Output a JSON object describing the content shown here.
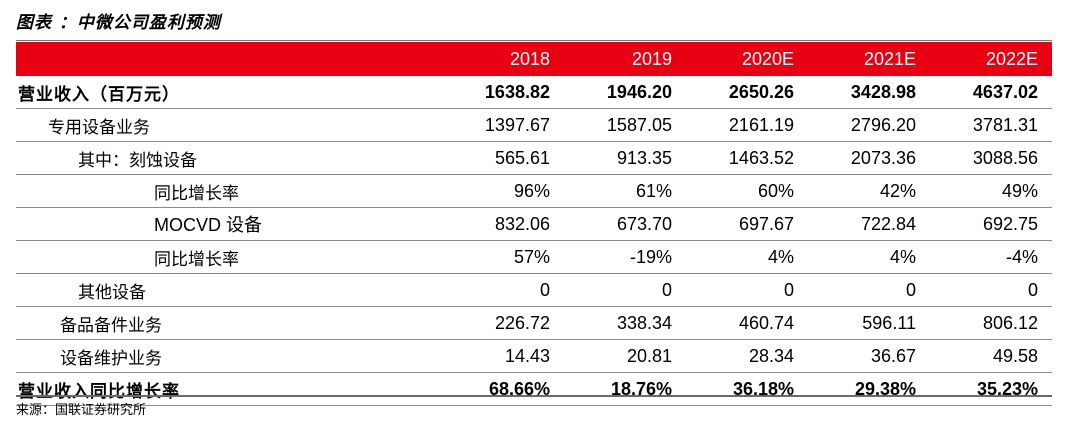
{
  "title": "图表    ：中微公司盈利预测",
  "columns": [
    "2018",
    "2019",
    "2020E",
    "2021E",
    "2022E"
  ],
  "rows": [
    {
      "label": "营业收入（百万元）",
      "values": [
        "1638.82",
        "1946.20",
        "2650.26",
        "3428.98",
        "4637.02"
      ]
    },
    {
      "label": "专用设备业务",
      "values": [
        "1397.67",
        "1587.05",
        "2161.19",
        "2796.20",
        "3781.31"
      ]
    },
    {
      "label": "其中：刻蚀设备",
      "values": [
        "565.61",
        "913.35",
        "1463.52",
        "2073.36",
        "3088.56"
      ]
    },
    {
      "label": "同比增长率",
      "values": [
        "96%",
        "61%",
        "60%",
        "42%",
        "49%"
      ]
    },
    {
      "label": "MOCVD  设备",
      "values": [
        "832.06",
        "673.70",
        "697.67",
        "722.84",
        "692.75"
      ]
    },
    {
      "label": "同比增长率",
      "values": [
        "57%",
        "-19%",
        "4%",
        "4%",
        "-4%"
      ]
    },
    {
      "label": "其他设备",
      "values": [
        "0",
        "0",
        "0",
        "0",
        "0"
      ]
    },
    {
      "label": "备品备件业务",
      "values": [
        "226.72",
        "338.34",
        "460.74",
        "596.11",
        "806.12"
      ]
    },
    {
      "label": "设备维护业务",
      "values": [
        "14.43",
        "20.81",
        "28.34",
        "36.67",
        "49.58"
      ]
    },
    {
      "label": "营业收入同比增长率",
      "values": [
        "68.66%",
        "18.76%",
        "36.18%",
        "29.38%",
        "35.23%"
      ]
    }
  ],
  "source": "来源：国联证券研究所",
  "colors": {
    "header_bg": "#e60012",
    "header_text": "#ffffff"
  }
}
